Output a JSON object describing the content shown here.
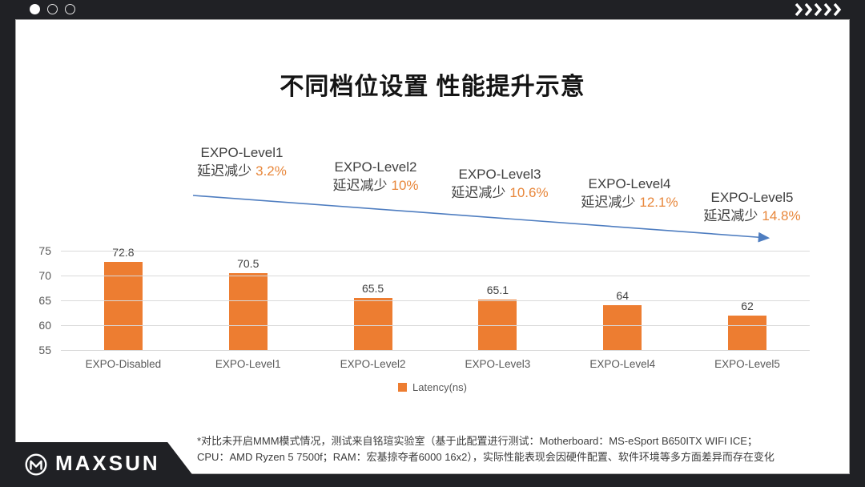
{
  "window_bar": {
    "dots": [
      {
        "state": "filled"
      },
      {
        "state": "outline"
      },
      {
        "state": "outline"
      }
    ],
    "chevron_count": 5
  },
  "slide": {
    "title": "不同档位设置 性能提升示意"
  },
  "annotations": [
    {
      "level": "EXPO-Level1",
      "prefix": "延迟减少",
      "percent": "3.2%"
    },
    {
      "level": "EXPO-Level2",
      "prefix": "延迟减少",
      "percent": "10%"
    },
    {
      "level": "EXPO-Level3",
      "prefix": "延迟减少",
      "percent": "10.6%"
    },
    {
      "level": "EXPO-Level4",
      "prefix": "延迟减少",
      "percent": "12.1%"
    },
    {
      "level": "EXPO-Level5",
      "prefix": "延迟减少",
      "percent": "14.8%"
    }
  ],
  "chart_data": {
    "type": "bar",
    "categories": [
      "EXPO-Disabled",
      "EXPO-Level1",
      "EXPO-Level2",
      "EXPO-Level3",
      "EXPO-Level4",
      "EXPO-Level5"
    ],
    "series": [
      {
        "name": "Latency(ns)",
        "values": [
          72.8,
          70.5,
          65.5,
          65.1,
          64,
          62
        ]
      }
    ],
    "title": "不同档位设置 性能提升示意",
    "xlabel": "",
    "ylabel": "",
    "ylim": [
      55,
      75
    ],
    "yticks": [
      75,
      70,
      65,
      60,
      55
    ],
    "grid": true,
    "legend_position": "bottom",
    "bar_color": "#ED7D31"
  },
  "footnote": {
    "line1": "*对比未开启MMM模式情况，测试来自铭瑄实验室（基于此配置进行测试：Motherboard：MS-eSport B650ITX WIFI ICE；",
    "line2": "CPU：AMD Ryzen 5 7500f；RAM：宏基掠夺者6000 16x2），实际性能表现会因硬件配置、软件环境等多方面差异而存在变化"
  },
  "brand": {
    "name": "MAXSUN",
    "logo_icon": "maxsun-m-circle-icon"
  },
  "colors": {
    "bar_orange": "#ED7D31",
    "percent_orange": "#E8873B",
    "arrow_blue": "#4E7DC0",
    "frame_dark": "#202125",
    "gridline_gray": "#D9D9D9"
  }
}
